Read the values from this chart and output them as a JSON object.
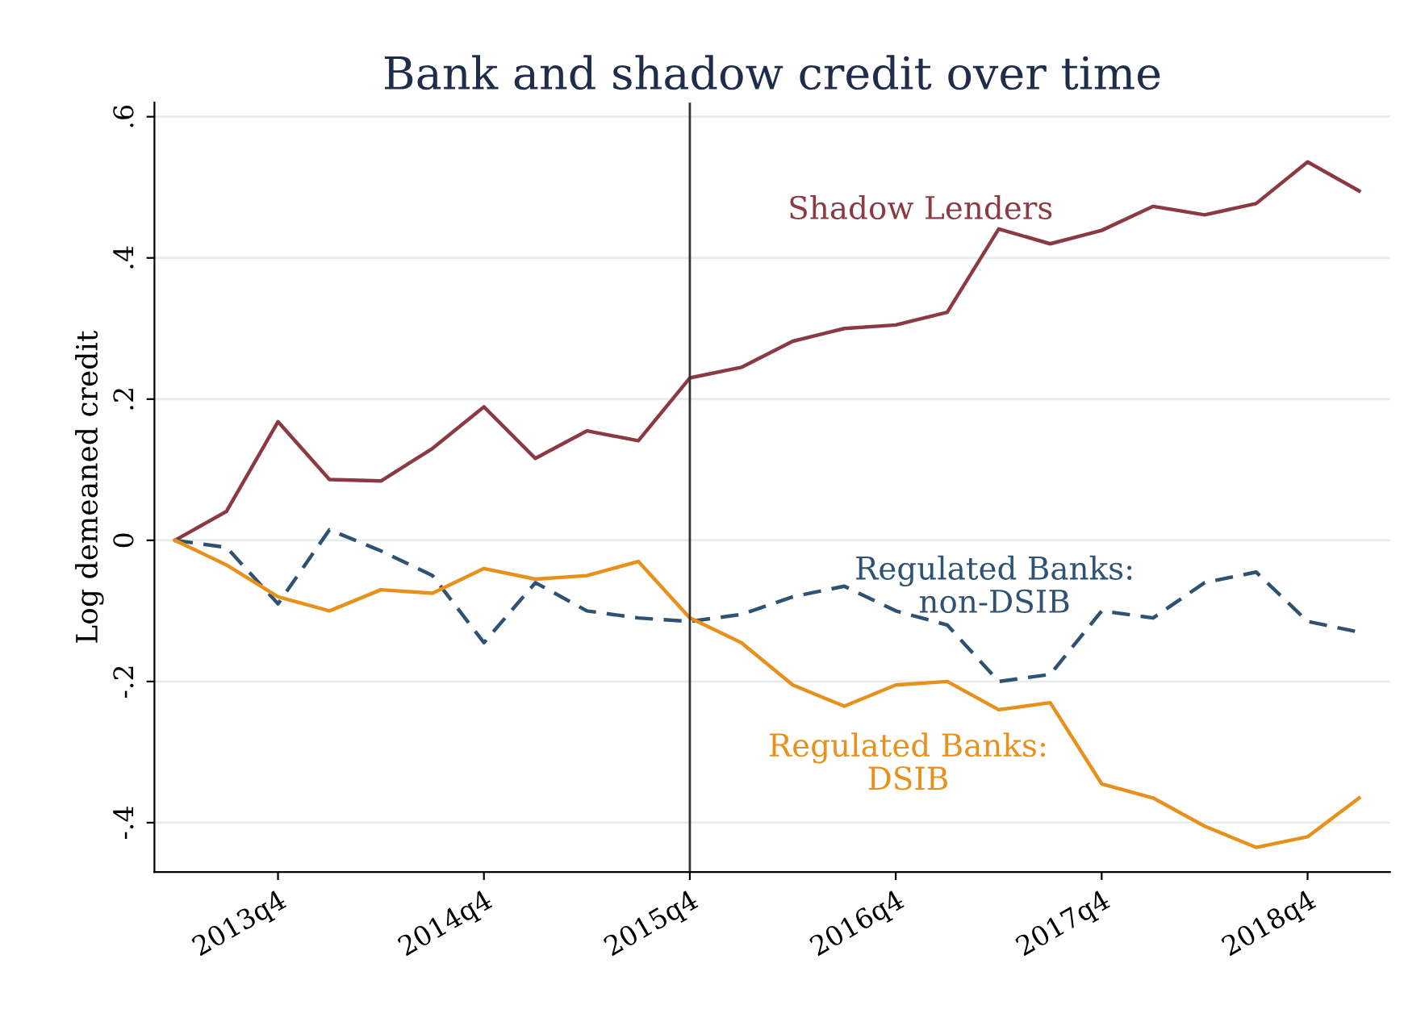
{
  "chart_data": {
    "type": "line",
    "title": "Bank and shadow credit over time",
    "ylabel": "Log demeaned credit",
    "categories": [
      null,
      null,
      "2013q4",
      null,
      null,
      null,
      "2014q4",
      null,
      null,
      null,
      "2015q4",
      null,
      null,
      null,
      "2016q4",
      null,
      null,
      null,
      "2017q4",
      null,
      null,
      null,
      "2018q4",
      null
    ],
    "series": [
      {
        "color": "#8b3a44",
        "line_style": "solid",
        "values": [
          0,
          0.041,
          0.168,
          0.086,
          0.084,
          0.13,
          0.189,
          0.116,
          0.155,
          0.141,
          0.23,
          0.245,
          0.282,
          0.3,
          0.305,
          0.323,
          0.441,
          0.42,
          0.439,
          0.473,
          0.461,
          0.477,
          0.536,
          0.495
        ]
      },
      {
        "color": "#2f5272",
        "line_style": "dashed",
        "values": [
          0,
          -0.01,
          -0.09,
          0.015,
          -0.015,
          -0.05,
          -0.145,
          -0.06,
          -0.1,
          -0.11,
          -0.115,
          -0.105,
          -0.08,
          -0.065,
          -0.1,
          -0.12,
          -0.2,
          -0.19,
          -0.1,
          -0.11,
          -0.06,
          -0.045,
          -0.115,
          -0.13
        ]
      },
      {
        "color": "#e8901c",
        "line_style": "solid",
        "values": [
          0,
          -0.035,
          -0.08,
          -0.1,
          -0.07,
          -0.075,
          -0.04,
          -0.055,
          -0.05,
          -0.03,
          -0.11,
          -0.145,
          -0.205,
          -0.235,
          -0.205,
          -0.2,
          -0.24,
          -0.23,
          -0.345,
          -0.365,
          -0.405,
          -0.435,
          -0.42,
          -0.365
        ]
      }
    ],
    "ylim": [
      -0.47,
      0.62
    ],
    "yticks": [
      {
        "value": -0.4,
        "label": "-.4"
      },
      {
        "value": -0.2,
        "label": "-.2"
      },
      {
        "value": 0,
        "label": "0"
      },
      {
        "value": 0.2,
        "label": ".2"
      },
      {
        "value": 0.4,
        "label": ".4"
      },
      {
        "value": 0.6,
        "label": ".6"
      }
    ],
    "grid": "y",
    "legend": false,
    "marker": "none",
    "ref_lines": [
      {
        "axis": "x",
        "value": "2015q4",
        "color": "#333333"
      }
    ],
    "annotations": [
      "Shadow Lenders",
      "Regulated Banks:\nnon-DSIB",
      "Regulated Banks:\nDSIB"
    ]
  }
}
